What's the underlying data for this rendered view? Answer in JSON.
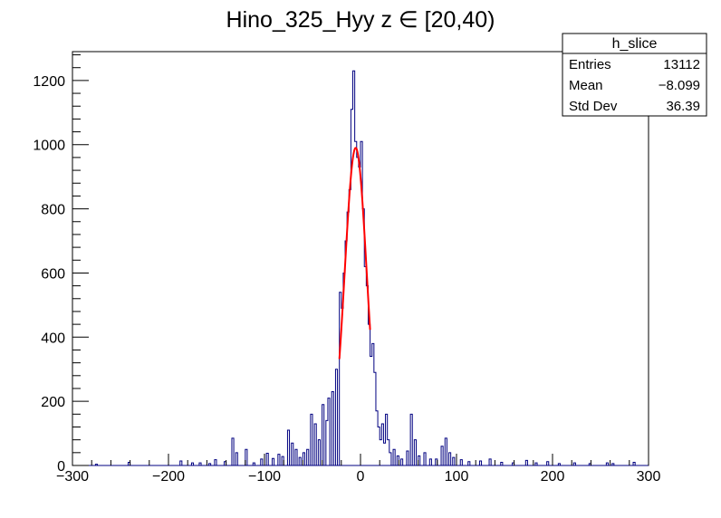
{
  "chart_data": {
    "type": "histogram",
    "title": "Hino_325_Hyy z  ∈ [20,40)",
    "xlim": [
      -300,
      300
    ],
    "ylim": [
      0,
      1290
    ],
    "x_ticks": [
      -300,
      -200,
      -100,
      0,
      100,
      200,
      300
    ],
    "x_tick_labels": [
      "−300",
      "−200",
      "−100",
      "0",
      "100",
      "200",
      "300"
    ],
    "y_ticks": [
      0,
      200,
      400,
      600,
      800,
      1000,
      1200
    ],
    "y_tick_labels": [
      "0",
      "200",
      "400",
      "600",
      "800",
      "1000",
      "1200"
    ],
    "grid": false,
    "bin_width": 2,
    "histogram": {
      "name": "h_slice",
      "color": "#000080",
      "bins": [
        [
          -276,
          4
        ],
        [
          -242,
          10
        ],
        [
          -188,
          14
        ],
        [
          -176,
          8
        ],
        [
          -168,
          8
        ],
        [
          -158,
          6
        ],
        [
          -152,
          18
        ],
        [
          -142,
          12
        ],
        [
          -134,
          85
        ],
        [
          -130,
          40
        ],
        [
          -120,
          50
        ],
        [
          -112,
          8
        ],
        [
          -104,
          20
        ],
        [
          -98,
          38
        ],
        [
          -92,
          22
        ],
        [
          -86,
          35
        ],
        [
          -82,
          28
        ],
        [
          -76,
          110
        ],
        [
          -72,
          70
        ],
        [
          -68,
          50
        ],
        [
          -64,
          25
        ],
        [
          -60,
          40
        ],
        [
          -56,
          50
        ],
        [
          -52,
          160
        ],
        [
          -48,
          130
        ],
        [
          -44,
          80
        ],
        [
          -40,
          190
        ],
        [
          -36,
          140
        ],
        [
          -34,
          210
        ],
        [
          -30,
          230
        ],
        [
          -26,
          300
        ],
        [
          -22,
          540
        ],
        [
          -20,
          490
        ],
        [
          -18,
          600
        ],
        [
          -16,
          700
        ],
        [
          -14,
          790
        ],
        [
          -12,
          860
        ],
        [
          -10,
          1110
        ],
        [
          -8,
          1230
        ],
        [
          -6,
          1010
        ],
        [
          -4,
          960
        ],
        [
          -2,
          930
        ],
        [
          0,
          1010
        ],
        [
          2,
          800
        ],
        [
          4,
          620
        ],
        [
          6,
          560
        ],
        [
          8,
          440
        ],
        [
          10,
          340
        ],
        [
          12,
          380
        ],
        [
          14,
          290
        ],
        [
          16,
          170
        ],
        [
          18,
          120
        ],
        [
          20,
          80
        ],
        [
          22,
          130
        ],
        [
          24,
          70
        ],
        [
          26,
          160
        ],
        [
          28,
          80
        ],
        [
          30,
          40
        ],
        [
          34,
          50
        ],
        [
          38,
          30
        ],
        [
          42,
          20
        ],
        [
          48,
          45
        ],
        [
          52,
          160
        ],
        [
          56,
          80
        ],
        [
          60,
          30
        ],
        [
          66,
          40
        ],
        [
          72,
          20
        ],
        [
          78,
          20
        ],
        [
          84,
          60
        ],
        [
          88,
          85
        ],
        [
          92,
          40
        ],
        [
          96,
          25
        ],
        [
          104,
          18
        ],
        [
          112,
          12
        ],
        [
          124,
          14
        ],
        [
          134,
          20
        ],
        [
          146,
          10
        ],
        [
          158,
          8
        ],
        [
          172,
          16
        ],
        [
          182,
          8
        ],
        [
          194,
          12
        ],
        [
          206,
          6
        ],
        [
          222,
          8
        ],
        [
          238,
          6
        ],
        [
          256,
          8
        ],
        [
          262,
          6
        ],
        [
          284,
          10
        ]
      ]
    },
    "fit": {
      "type": "gaussian",
      "color": "#ff0000",
      "amplitude": 990,
      "mean": -5,
      "sigma": 11.5,
      "x_range": [
        -22,
        10
      ]
    },
    "stats": {
      "title": "h_slice",
      "rows": [
        {
          "label": "Entries",
          "value": "13112"
        },
        {
          "label": "Mean",
          "value": "−8.099"
        },
        {
          "label": "Std Dev",
          "value": "36.39"
        }
      ]
    }
  }
}
